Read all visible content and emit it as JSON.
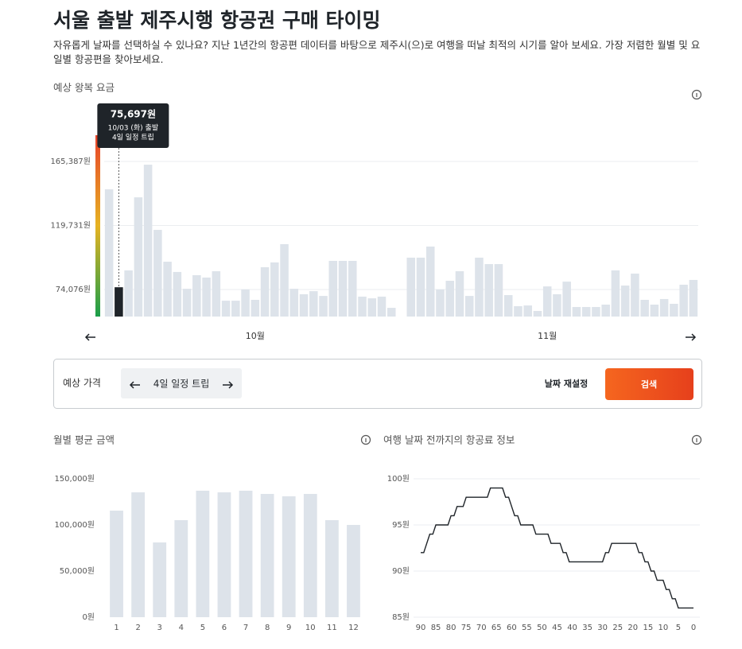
{
  "header": {
    "title": "서울 출발 제주시행 항공권 구매 타이밍",
    "description": "자유롭게 날짜를 선택하실 수 있나요? 지난 1년간의 항공편 데이터를 바탕으로 제주시(으)로 여행을 떠날 최적의 시기를 알아 보세요. 가장 저렴한 월별 및 요일별 항공편을 찾아보세요."
  },
  "chart_data": [
    {
      "type": "bar",
      "title": "예상 왕복 요금",
      "categories": [
        null,
        null,
        null,
        null,
        null,
        null,
        null,
        null,
        null,
        null,
        null,
        null,
        null,
        null,
        null,
        "10월",
        null,
        null,
        null,
        null,
        null,
        null,
        null,
        null,
        null,
        null,
        null,
        null,
        null,
        null,
        null,
        null,
        null,
        null,
        null,
        null,
        null,
        null,
        null,
        null,
        null,
        null,
        null,
        null,
        null,
        "11월",
        null,
        null,
        null,
        null,
        null,
        null,
        null,
        null,
        null,
        null,
        null,
        null,
        null,
        null,
        null
      ],
      "values": [
        145500,
        75697,
        87700,
        139800,
        163100,
        116600,
        93900,
        86600,
        74600,
        84300,
        82600,
        87100,
        66100,
        66100,
        74100,
        66700,
        90000,
        93400,
        106400,
        74600,
        70700,
        72900,
        69500,
        94500,
        94500,
        94500,
        69000,
        67800,
        69000,
        61000,
        null,
        96800,
        96800,
        104700,
        74100,
        80300,
        87100,
        69500,
        96800,
        92200,
        92200,
        70100,
        62200,
        62700,
        58800,
        76300,
        70700,
        79700,
        61600,
        61600,
        61600,
        63300,
        87700,
        76900,
        85400,
        66700,
        63300,
        67300,
        63900,
        77500,
        80900
      ],
      "value_labels": [
        null,
        "75,697원",
        null,
        null,
        null,
        null,
        null,
        null,
        null,
        null,
        null,
        null,
        null,
        null,
        null,
        null,
        null,
        null,
        null,
        null,
        null,
        null,
        null,
        null,
        null,
        null,
        null,
        null,
        null,
        null,
        null,
        null,
        null,
        null,
        null,
        null,
        null,
        null,
        null,
        null,
        null,
        null,
        null,
        null,
        null,
        null,
        null,
        null,
        null,
        null,
        null,
        null,
        null,
        null,
        null,
        null,
        null,
        null,
        null,
        null,
        null
      ],
      "tooltip": [
        "10/03 (화) 출발",
        "4일 일정 트립"
      ],
      "highlight": 1,
      "color": "#dde3ea",
      "highlight_color": "#1f2429",
      "ylim": [
        54800,
        184100
      ],
      "yticks": [
        {
          "value": 74076,
          "label": "74,076원"
        },
        {
          "value": 119731,
          "label": "119,731원"
        },
        {
          "value": 165387,
          "label": "165,387원"
        }
      ],
      "grid": true
    },
    {
      "type": "bar",
      "title": "월별 평균 금액",
      "categories": [
        "1",
        "2",
        "3",
        "4",
        "5",
        "6",
        "7",
        "8",
        "9",
        "10",
        "11",
        "12"
      ],
      "values": [
        115500,
        135300,
        81000,
        105200,
        137100,
        135300,
        137100,
        133600,
        131000,
        133600,
        105200,
        100000
      ],
      "color": "#dde3ea",
      "ylim": [
        0,
        150000
      ],
      "yticks": [
        {
          "value": 0,
          "label": "0원"
        },
        {
          "value": 50000,
          "label": "50,000원"
        },
        {
          "value": 100000,
          "label": "100,000원"
        },
        {
          "value": 150000,
          "label": "150,000원"
        }
      ],
      "grid": false
    },
    {
      "type": "line",
      "title": "여행 날짜 전까지의 항공료 정보",
      "x": [
        90,
        89,
        88,
        87,
        86,
        85,
        84,
        83,
        82,
        81,
        80,
        79,
        78,
        77,
        76,
        75,
        74,
        73,
        72,
        71,
        70,
        69,
        68,
        67,
        66,
        65,
        64,
        63,
        62,
        61,
        60,
        59,
        58,
        57,
        56,
        55,
        54,
        53,
        52,
        51,
        50,
        49,
        48,
        47,
        46,
        45,
        44,
        43,
        42,
        41,
        40,
        39,
        38,
        37,
        36,
        35,
        34,
        33,
        32,
        31,
        30,
        29,
        28,
        27,
        26,
        25,
        24,
        23,
        22,
        21,
        20,
        19,
        18,
        17,
        16,
        15,
        14,
        13,
        12,
        11,
        10,
        9,
        8,
        7,
        6,
        5,
        4,
        3,
        2,
        1,
        0
      ],
      "values": [
        92,
        92,
        93,
        94,
        94,
        95,
        95,
        95,
        95,
        95,
        96,
        96,
        97,
        97,
        97,
        98,
        98,
        98,
        98,
        98,
        98,
        98,
        98,
        99,
        99,
        99,
        99,
        99,
        98,
        98,
        97,
        96,
        96,
        95,
        95,
        95,
        95,
        95,
        94,
        94,
        94,
        94,
        94,
        93,
        93,
        93,
        93,
        92,
        92,
        91,
        91,
        91,
        91,
        91,
        91,
        91,
        91,
        91,
        91,
        91,
        91,
        92,
        92,
        93,
        93,
        93,
        93,
        93,
        93,
        93,
        93,
        93,
        92,
        92,
        91,
        91,
        90,
        90,
        89,
        89,
        89,
        88,
        88,
        87,
        87,
        86,
        86,
        86,
        86,
        86,
        86
      ],
      "color": "#1f2429",
      "xlim": [
        90,
        0
      ],
      "xticks": [
        90,
        85,
        80,
        75,
        70,
        65,
        60,
        55,
        50,
        45,
        40,
        35,
        30,
        25,
        20,
        15,
        10,
        5,
        0
      ],
      "ylim": [
        85,
        100
      ],
      "yticks": [
        {
          "value": 85,
          "label": "85원"
        },
        {
          "value": 90,
          "label": "90원"
        },
        {
          "value": 95,
          "label": "95원"
        },
        {
          "value": 100,
          "label": "100원"
        }
      ],
      "grid": true
    }
  ],
  "controls": {
    "label": "예상 가격",
    "trip": "4일 일정 트립",
    "reset": "날짜 재설정",
    "search": "검색"
  }
}
